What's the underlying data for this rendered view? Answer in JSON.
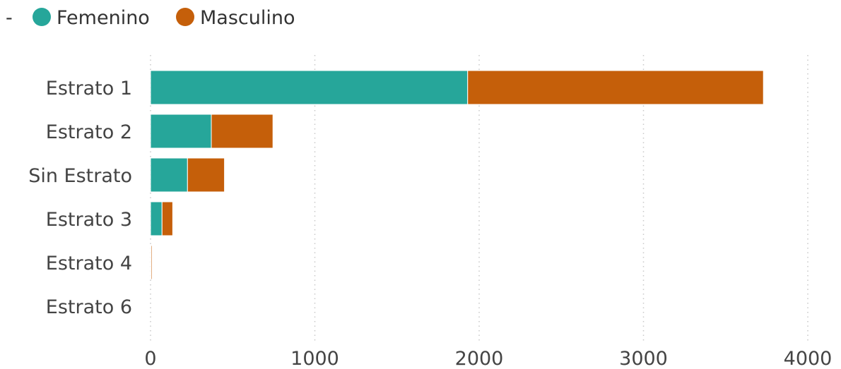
{
  "chart_data": {
    "type": "bar",
    "orientation": "horizontal",
    "stacked": true,
    "legend_marker": "-",
    "legend_position": "top-left",
    "categories": [
      "Estrato 1",
      "Estrato 2",
      "Sin Estrato",
      "Estrato 3",
      "Estrato 4",
      "Estrato 6"
    ],
    "series": [
      {
        "name": "Femenino",
        "color": "#26A69A",
        "values": [
          1930,
          370,
          225,
          70,
          4,
          0
        ]
      },
      {
        "name": "Masculino",
        "color": "#C55F0A",
        "values": [
          1800,
          375,
          225,
          65,
          3,
          0
        ]
      }
    ],
    "xlim": [
      0,
      4000
    ],
    "xticks": [
      "0",
      "1000",
      "2000",
      "3000",
      "4000"
    ],
    "xtick_values": [
      0,
      1000,
      2000,
      3000,
      4000
    ],
    "grid": "vertical dotted"
  }
}
